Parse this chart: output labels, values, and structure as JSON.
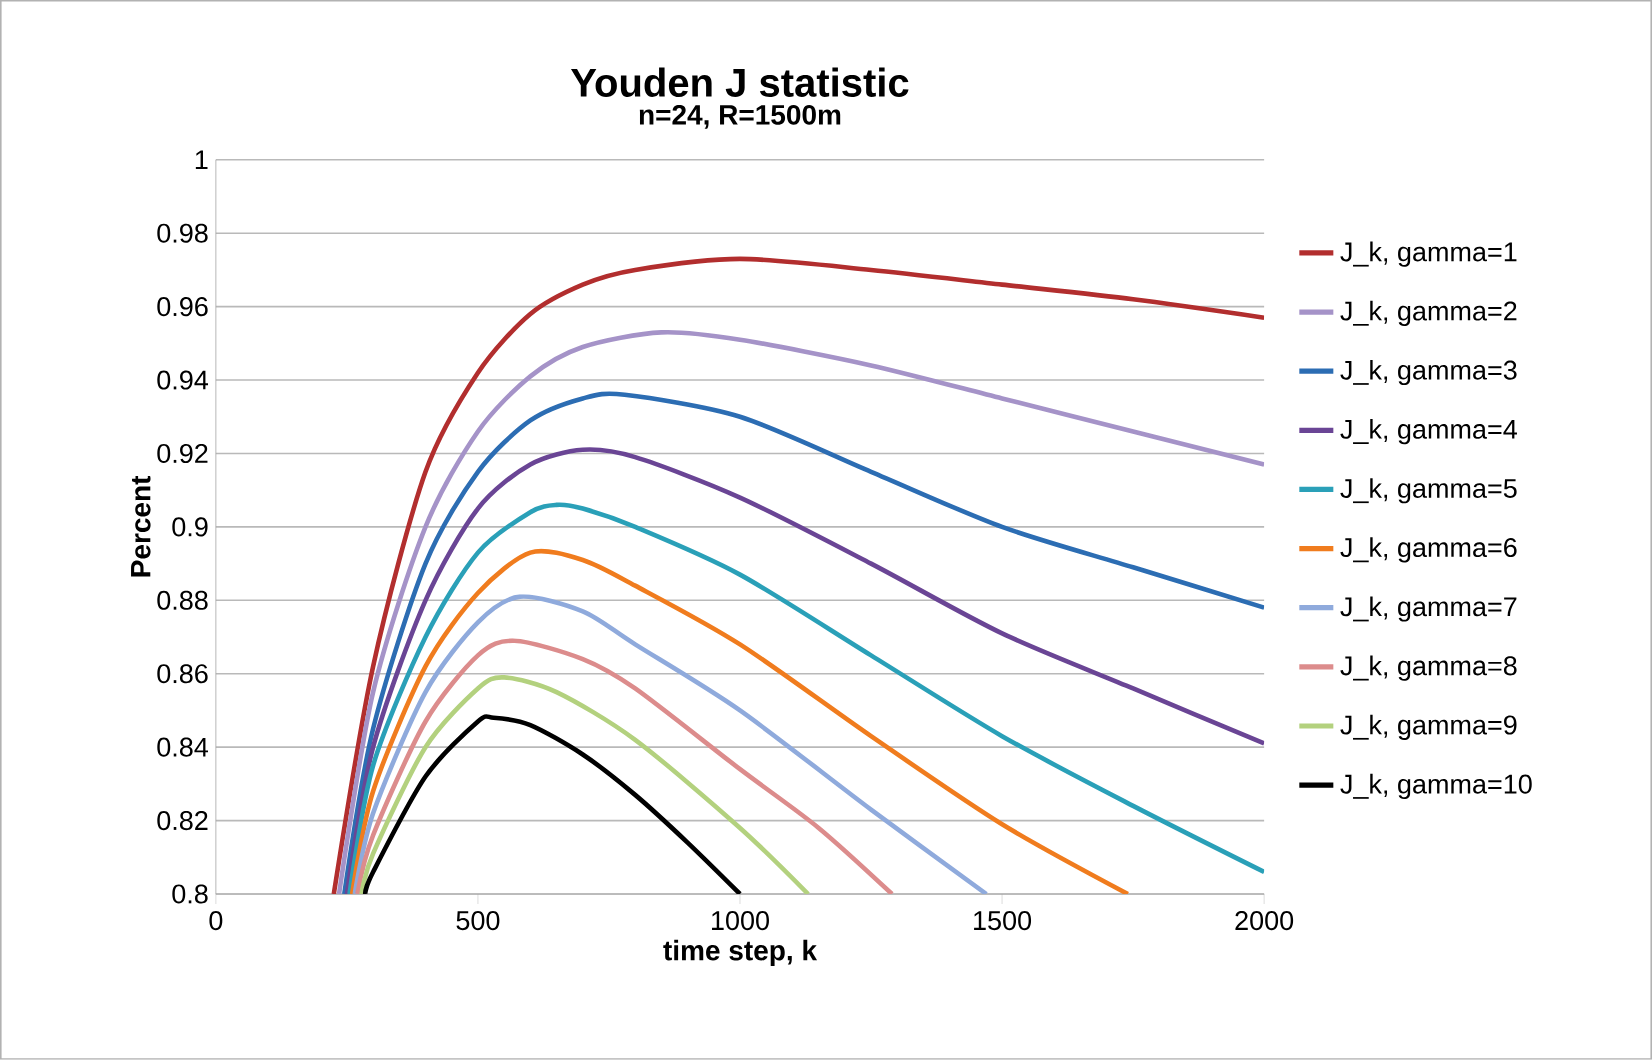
{
  "chart_data": {
    "type": "line",
    "title": "Youden J statistic",
    "subtitle": "n=24, R=1500m",
    "xlabel": "time step, k",
    "ylabel": "Percent",
    "xlim": [
      0,
      2000
    ],
    "xticks": [
      0,
      500,
      1000,
      1500,
      2000
    ],
    "ylim": [
      0.8,
      1
    ],
    "yticks": [
      0.8,
      0.82,
      0.84,
      0.86,
      0.88,
      0.9,
      0.92,
      0.94,
      0.96,
      0.98,
      1
    ],
    "grid": "y",
    "legend": "right",
    "marker": "none",
    "line_style": "solid",
    "series": [
      {
        "name": "J_k, gamma=1",
        "color": "#b22e2e",
        "x": [
          225,
          300,
          400,
          500,
          600,
          700,
          800,
          1000,
          1250,
          1500,
          1750,
          2000
        ],
        "values": [
          0.8,
          0.862,
          0.915,
          0.942,
          0.958,
          0.966,
          0.97,
          0.973,
          0.97,
          0.966,
          0.962,
          0.957
        ]
      },
      {
        "name": "J_k, gamma=2",
        "color": "#a593c8",
        "x": [
          235,
          300,
          400,
          500,
          600,
          700,
          850,
          1000,
          1250,
          1500,
          1750,
          2000
        ],
        "values": [
          0.8,
          0.855,
          0.9,
          0.926,
          0.941,
          0.949,
          0.953,
          0.951,
          0.944,
          0.935,
          0.926,
          0.917
        ]
      },
      {
        "name": "J_k, gamma=3",
        "color": "#2c6db3",
        "x": [
          245,
          300,
          400,
          500,
          600,
          700,
          780,
          1000,
          1250,
          1500,
          1750,
          2000
        ],
        "values": [
          0.8,
          0.845,
          0.89,
          0.915,
          0.929,
          0.935,
          0.936,
          0.93,
          0.915,
          0.9,
          0.889,
          0.878
        ]
      },
      {
        "name": "J_k, gamma=4",
        "color": "#6a4595",
        "x": [
          250,
          300,
          400,
          500,
          600,
          700,
          800,
          1000,
          1250,
          1500,
          1750,
          2000
        ],
        "values": [
          0.8,
          0.84,
          0.88,
          0.905,
          0.917,
          0.921,
          0.919,
          0.908,
          0.89,
          0.871,
          0.856,
          0.841
        ]
      },
      {
        "name": "J_k, gamma=5",
        "color": "#2aa0b8",
        "x": [
          255,
          300,
          400,
          500,
          600,
          650,
          700,
          800,
          1000,
          1250,
          1500,
          1750,
          2000
        ],
        "values": [
          0.8,
          0.835,
          0.87,
          0.893,
          0.904,
          0.906,
          0.905,
          0.9,
          0.887,
          0.865,
          0.843,
          0.824,
          0.806
        ]
      },
      {
        "name": "J_k, gamma=6",
        "color": "#f07c1e",
        "x": [
          260,
          300,
          400,
          500,
          600,
          700,
          800,
          1000,
          1250,
          1500,
          1740
        ],
        "values": [
          0.8,
          0.828,
          0.862,
          0.882,
          0.893,
          0.891,
          0.884,
          0.868,
          0.843,
          0.819,
          0.8
        ]
      },
      {
        "name": "J_k, gamma=7",
        "color": "#8faadc",
        "x": [
          265,
          300,
          400,
          500,
          580,
          700,
          800,
          1000,
          1250,
          1470
        ],
        "values": [
          0.8,
          0.822,
          0.855,
          0.874,
          0.881,
          0.877,
          0.868,
          0.85,
          0.823,
          0.8
        ]
      },
      {
        "name": "J_k, gamma=8",
        "color": "#dc8c8c",
        "x": [
          270,
          300,
          400,
          500,
          570,
          700,
          800,
          1000,
          1150,
          1290
        ],
        "values": [
          0.8,
          0.816,
          0.847,
          0.865,
          0.869,
          0.864,
          0.856,
          0.834,
          0.818,
          0.8
        ]
      },
      {
        "name": "J_k, gamma=9",
        "color": "#b3d17e",
        "x": [
          278,
          300,
          400,
          500,
          550,
          650,
          800,
          1000,
          1130
        ],
        "values": [
          0.8,
          0.811,
          0.84,
          0.856,
          0.859,
          0.855,
          0.842,
          0.818,
          0.8
        ]
      },
      {
        "name": "J_k, gamma=10",
        "color": "#000000",
        "x": [
          285,
          300,
          400,
          500,
          530,
          600,
          700,
          800,
          900,
          1000
        ],
        "values": [
          0.8,
          0.806,
          0.832,
          0.847,
          0.848,
          0.846,
          0.838,
          0.827,
          0.814,
          0.8
        ]
      }
    ]
  }
}
